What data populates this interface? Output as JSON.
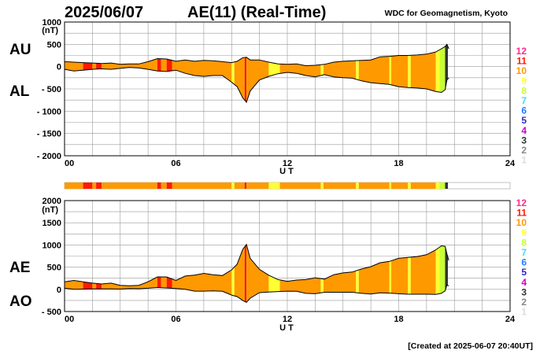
{
  "header": {
    "date": "2025/06/07",
    "title": "AE(11) (Real-Time)",
    "source": "WDC for Geomagnetism, Kyoto"
  },
  "footer": {
    "created": "[Created at 2025-06-07 20:40UT]"
  },
  "colors": {
    "fill_default": "#ff9900",
    "grid": "#999999",
    "axis": "#000000"
  },
  "color_legend": [
    {
      "label": "12",
      "color": "#ff2d8c"
    },
    {
      "label": "11",
      "color": "#ff1a00"
    },
    {
      "label": "10",
      "color": "#ff9900"
    },
    {
      "label": "9",
      "color": "#ffff33"
    },
    {
      "label": "8",
      "color": "#c8ff33"
    },
    {
      "label": "7",
      "color": "#33e0ff"
    },
    {
      "label": "6",
      "color": "#1f7fff"
    },
    {
      "label": "5",
      "color": "#2a2acc"
    },
    {
      "label": "4",
      "color": "#cc00cc"
    },
    {
      "label": "3",
      "color": "#333333"
    },
    {
      "label": "2",
      "color": "#888888"
    },
    {
      "label": "1",
      "color": "#dddddd"
    }
  ],
  "chart_data": [
    {
      "type": "area",
      "panel": "AU/AL",
      "side_labels": [
        "AU",
        "AL"
      ],
      "ylabel": "(nT)",
      "xlabel": "U T",
      "xlim": [
        0,
        24
      ],
      "ylim": [
        -2000,
        1000
      ],
      "xticks": [
        "00",
        "06",
        "12",
        "18",
        "24"
      ],
      "yticks": [
        "1000",
        "500",
        "0",
        "- 500",
        "- 1000",
        "- 1500",
        "- 2000"
      ],
      "ytick_values": [
        1000,
        500,
        0,
        -500,
        -1000,
        -1500,
        -2000
      ],
      "grid": true,
      "x": [
        0,
        0.5,
        1,
        1.5,
        2,
        2.5,
        3,
        3.5,
        4,
        4.5,
        5,
        5.5,
        6,
        6.5,
        7,
        7.5,
        8,
        8.5,
        9,
        9.3,
        9.6,
        9.8,
        10,
        10.5,
        11,
        11.5,
        12,
        12.5,
        13,
        13.5,
        14,
        14.5,
        15,
        15.5,
        16,
        16.5,
        17,
        17.5,
        18,
        18.5,
        19,
        19.5,
        20,
        20.3,
        20.5,
        20.6,
        20.7
      ],
      "series": [
        {
          "name": "AU",
          "values": [
            110,
            100,
            90,
            80,
            70,
            80,
            50,
            60,
            60,
            110,
            180,
            170,
            120,
            150,
            120,
            140,
            130,
            110,
            90,
            120,
            200,
            210,
            150,
            150,
            100,
            60,
            50,
            60,
            20,
            30,
            50,
            100,
            120,
            130,
            140,
            150,
            220,
            230,
            250,
            250,
            260,
            280,
            330,
            400,
            450,
            500,
            400
          ]
        },
        {
          "name": "AL",
          "values": [
            -60,
            -100,
            -80,
            -60,
            -50,
            -60,
            -40,
            -20,
            -30,
            -60,
            -100,
            -110,
            -80,
            -150,
            -200,
            -220,
            -200,
            -200,
            -350,
            -450,
            -700,
            -800,
            -550,
            -300,
            -220,
            -160,
            -130,
            -150,
            -200,
            -230,
            -180,
            -230,
            -250,
            -260,
            -320,
            -360,
            -380,
            -400,
            -450,
            -470,
            -480,
            -500,
            -560,
            -580,
            -520,
            -300,
            -250
          ]
        }
      ]
    },
    {
      "type": "area",
      "panel": "AE/AO",
      "side_labels": [
        "AE",
        "AO"
      ],
      "ylabel": "(nT)",
      "xlabel": "U T",
      "xlim": [
        0,
        24
      ],
      "ylim": [
        -500,
        2000
      ],
      "xticks": [
        "00",
        "06",
        "12",
        "18",
        "24"
      ],
      "yticks": [
        "2000",
        "1500",
        "1000",
        "500",
        "0",
        "- 500"
      ],
      "ytick_values": [
        2000,
        1500,
        1000,
        500,
        0,
        -500
      ],
      "grid": true,
      "x": [
        0,
        0.5,
        1,
        1.5,
        2,
        2.5,
        3,
        3.5,
        4,
        4.5,
        5,
        5.5,
        6,
        6.5,
        7,
        7.5,
        8,
        8.5,
        9,
        9.3,
        9.6,
        9.8,
        10,
        10.5,
        11,
        11.5,
        12,
        12.5,
        13,
        13.5,
        14,
        14.5,
        15,
        15.5,
        16,
        16.5,
        17,
        17.5,
        18,
        18.5,
        19,
        19.5,
        20,
        20.3,
        20.5,
        20.6,
        20.7
      ],
      "series": [
        {
          "name": "AE",
          "values": [
            170,
            200,
            170,
            140,
            120,
            140,
            90,
            80,
            90,
            170,
            280,
            280,
            200,
            300,
            320,
            360,
            330,
            310,
            440,
            570,
            900,
            1010,
            700,
            450,
            320,
            220,
            180,
            210,
            220,
            260,
            230,
            330,
            370,
            390,
            460,
            510,
            600,
            630,
            700,
            720,
            740,
            780,
            890,
            980,
            970,
            800,
            650
          ]
        },
        {
          "name": "AO",
          "values": [
            25,
            0,
            5,
            10,
            10,
            10,
            5,
            20,
            15,
            25,
            40,
            30,
            20,
            0,
            -40,
            -40,
            -35,
            -45,
            -130,
            -165,
            -250,
            -295,
            -200,
            -75,
            -60,
            -50,
            -40,
            -45,
            -90,
            -100,
            -65,
            -65,
            -65,
            -65,
            -90,
            -105,
            -80,
            -85,
            -100,
            -110,
            -110,
            -110,
            -115,
            -90,
            -35,
            100,
            75
          ]
        }
      ]
    },
    {
      "type": "heatmap",
      "panel": "activity-bar",
      "xlim": [
        0,
        24
      ],
      "segments": [
        {
          "start": 0,
          "end": 1.0,
          "level": 10
        },
        {
          "start": 1.0,
          "end": 1.5,
          "level": 11
        },
        {
          "start": 1.5,
          "end": 1.7,
          "level": 10
        },
        {
          "start": 1.7,
          "end": 2.0,
          "level": 11
        },
        {
          "start": 2.0,
          "end": 5.0,
          "level": 10
        },
        {
          "start": 5.0,
          "end": 5.2,
          "level": 11
        },
        {
          "start": 5.2,
          "end": 5.5,
          "level": 10
        },
        {
          "start": 5.5,
          "end": 5.8,
          "level": 11
        },
        {
          "start": 5.8,
          "end": 9.0,
          "level": 10
        },
        {
          "start": 9.0,
          "end": 9.15,
          "level": 9
        },
        {
          "start": 9.15,
          "end": 9.7,
          "level": 10
        },
        {
          "start": 9.7,
          "end": 9.8,
          "level": 11
        },
        {
          "start": 9.8,
          "end": 11.0,
          "level": 10
        },
        {
          "start": 11.0,
          "end": 11.6,
          "level": 9
        },
        {
          "start": 11.6,
          "end": 13.8,
          "level": 10
        },
        {
          "start": 13.8,
          "end": 13.95,
          "level": 9
        },
        {
          "start": 13.95,
          "end": 15.7,
          "level": 10
        },
        {
          "start": 15.7,
          "end": 15.85,
          "level": 9
        },
        {
          "start": 15.85,
          "end": 17.5,
          "level": 10
        },
        {
          "start": 17.5,
          "end": 17.6,
          "level": 9
        },
        {
          "start": 17.6,
          "end": 18.5,
          "level": 10
        },
        {
          "start": 18.5,
          "end": 18.65,
          "level": 9
        },
        {
          "start": 18.65,
          "end": 20.0,
          "level": 10
        },
        {
          "start": 20.0,
          "end": 20.2,
          "level": 9
        },
        {
          "start": 20.2,
          "end": 20.5,
          "level": 8
        },
        {
          "start": 20.5,
          "end": 20.65,
          "level": 3
        }
      ]
    }
  ]
}
